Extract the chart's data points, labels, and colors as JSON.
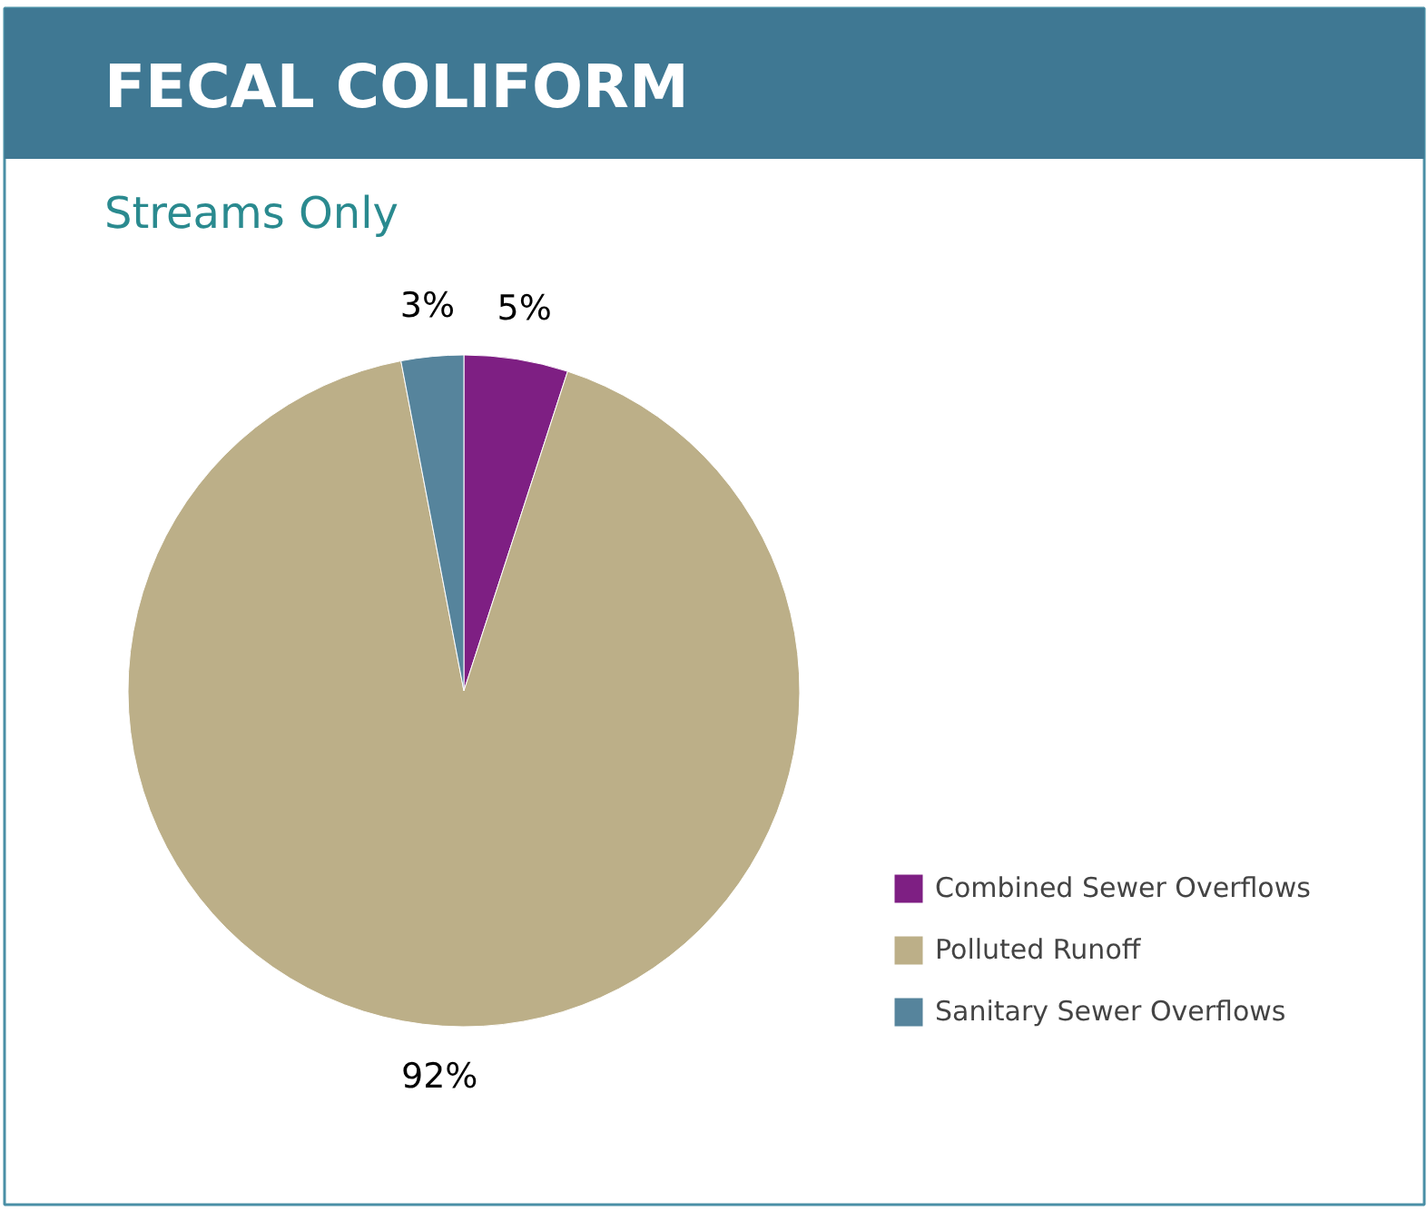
{
  "chart_data": {
    "type": "pie",
    "title": "FECAL COLIFORM",
    "subtitle": "Streams Only",
    "categories": [
      "Combined Sewer Overflows",
      "Polluted Runoff",
      "Sanitary Sewer Overflows"
    ],
    "values": [
      5,
      92,
      3
    ],
    "colors": [
      "#7e1f83",
      "#bcaf88",
      "#56849c"
    ],
    "value_labels": [
      "5%",
      "92%",
      "3%"
    ],
    "legend": "right"
  }
}
